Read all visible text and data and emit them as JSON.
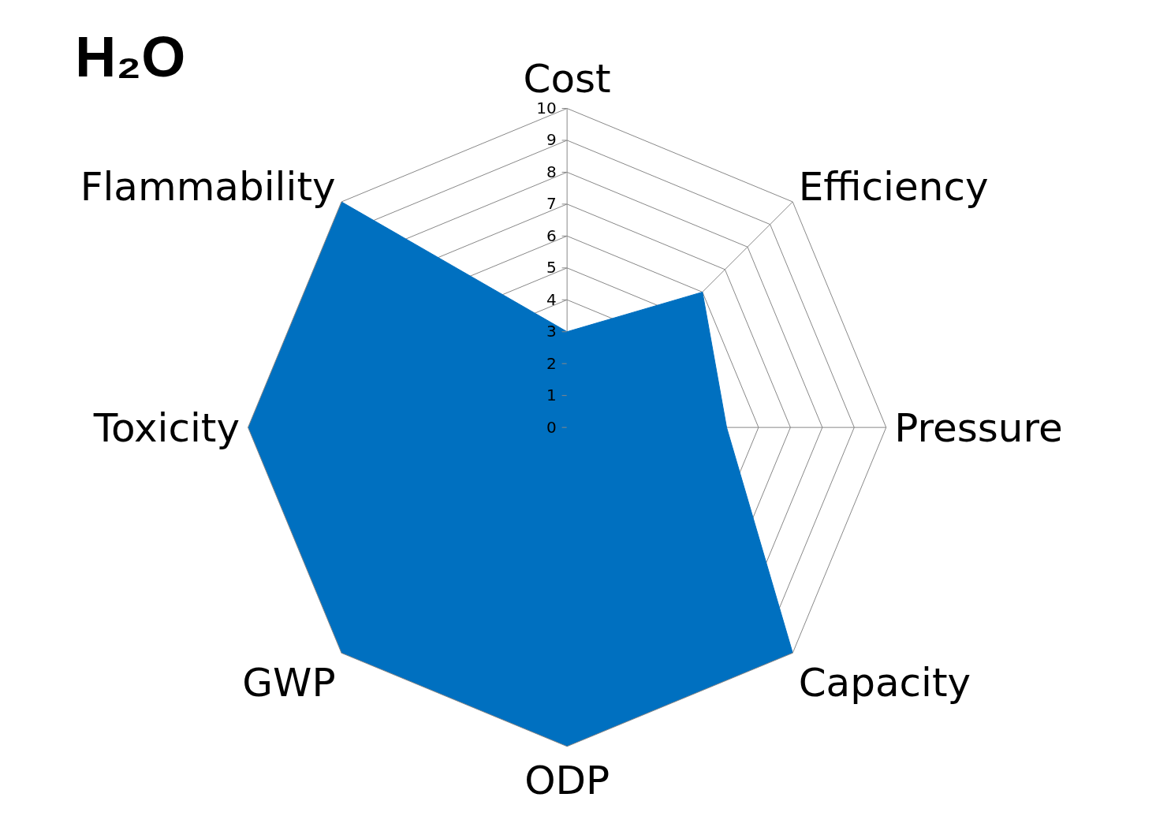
{
  "chart_data": {
    "type": "radar",
    "title": "H₂O",
    "categories": [
      "Cost",
      "Efficiency",
      "Pressure",
      "Capacity",
      "ODP",
      "GWP",
      "Toxicity",
      "Flammability"
    ],
    "series": [
      {
        "color": "#0070c0",
        "values": [
          3,
          6,
          5,
          10,
          10,
          10,
          10,
          10
        ]
      }
    ],
    "ylim": [
      0,
      10
    ],
    "yticks": [
      0,
      1,
      2,
      3,
      4,
      5,
      6,
      7,
      8,
      9,
      10
    ],
    "grid": true,
    "marker": "none"
  }
}
